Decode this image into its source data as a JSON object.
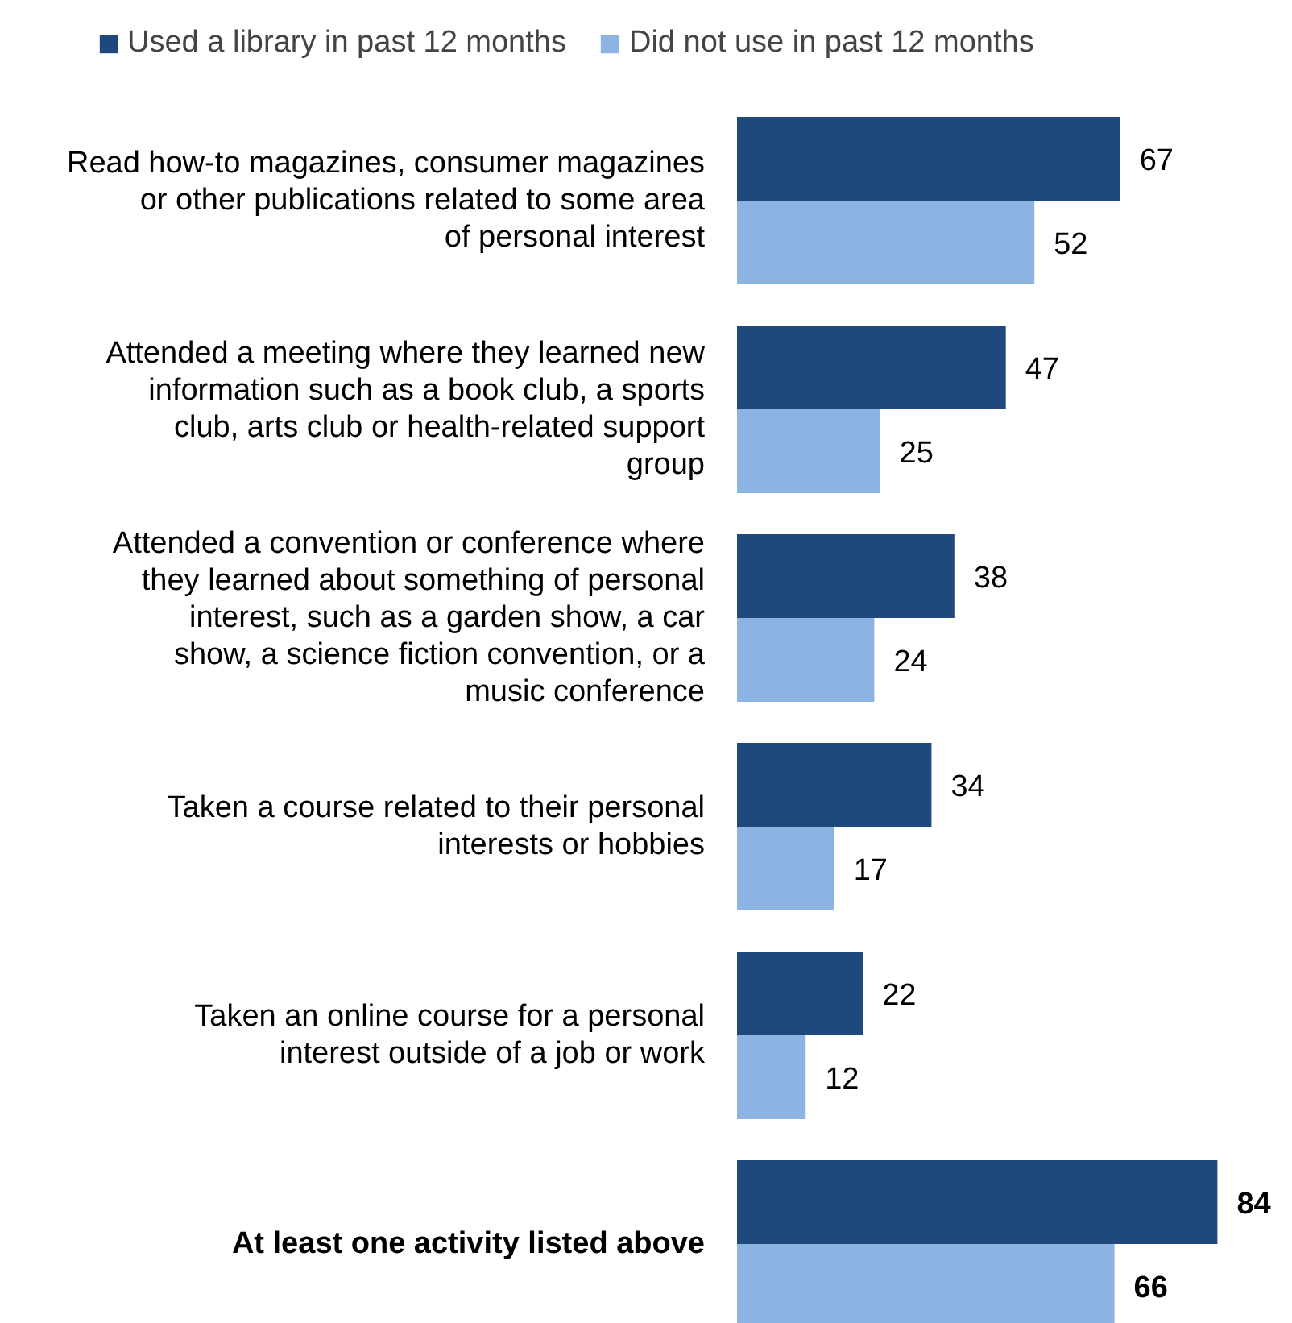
{
  "chart_data": {
    "type": "bar",
    "orientation": "horizontal",
    "categories": [
      "Read how-to magazines, consumer magazines or other publications related to some area of personal interest",
      "Attended a meeting where they learned new information such as a book club, a sports club, arts club or health-related support group",
      "Attended a convention or conference where they learned about something of personal interest, such as a garden show, a car show, a science fiction convention, or a music conference",
      "Taken a course related to their personal interests or hobbies",
      "Taken an online course for a personal interest outside of a job or work",
      "At least one activity listed above"
    ],
    "series": [
      {
        "name": "Used a library in past 12 months",
        "color": "#1f497d",
        "values": [
          67,
          47,
          38,
          34,
          22,
          84
        ]
      },
      {
        "name": "Did not use in past 12 months",
        "color": "#8db3e2",
        "values": [
          52,
          25,
          24,
          17,
          12,
          66
        ]
      }
    ],
    "data_labels": true,
    "legend": "top",
    "grid": false
  }
}
